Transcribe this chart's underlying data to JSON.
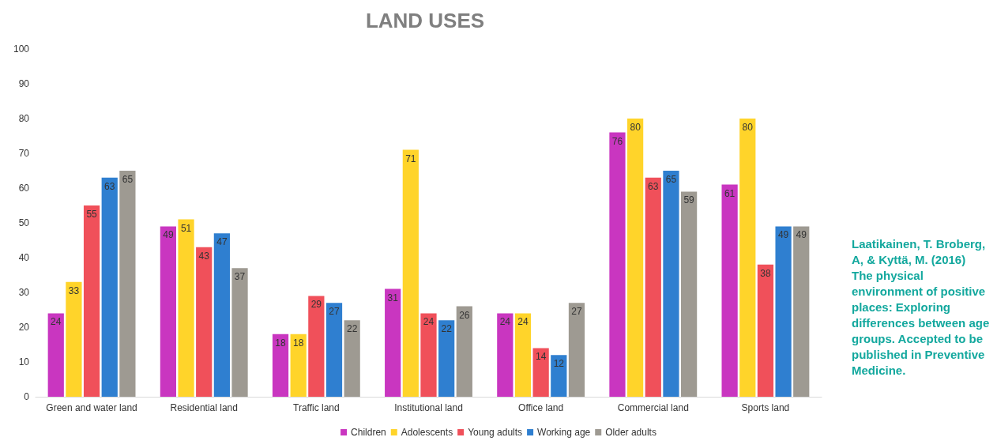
{
  "chart_data": {
    "type": "bar",
    "title": "LAND USES",
    "categories": [
      "Green and water land",
      "Residential land",
      "Traffic land",
      "Institutional land",
      "Office land",
      "Commercial land",
      "Sports land"
    ],
    "series": [
      {
        "name": "Children",
        "color": "#c936c0",
        "values": [
          24,
          49,
          18,
          31,
          24,
          76,
          61
        ]
      },
      {
        "name": "Adolescents",
        "color": "#ffd42a",
        "values": [
          33,
          51,
          18,
          71,
          24,
          80,
          80
        ]
      },
      {
        "name": "Young adults",
        "color": "#f0505a",
        "values": [
          55,
          43,
          29,
          24,
          14,
          63,
          38
        ]
      },
      {
        "name": "Working age",
        "color": "#2f7fd0",
        "values": [
          63,
          47,
          27,
          22,
          12,
          65,
          49
        ]
      },
      {
        "name": "Older adults",
        "color": "#9e9a92",
        "values": [
          65,
          37,
          22,
          26,
          27,
          59,
          49
        ]
      }
    ],
    "ylim": [
      0,
      100
    ],
    "yticks": [
      0,
      10,
      20,
      30,
      40,
      50,
      60,
      70,
      80,
      90,
      100
    ],
    "grid": false,
    "legend": "bottom",
    "data_labels": true,
    "annotations": [
      "Laatikainen, T. Broberg, A, & Kyttä, M. (2016) The physical environment of positive places: Exploring differences between age groups. Accepted to be published in Preventive Medicine."
    ]
  }
}
